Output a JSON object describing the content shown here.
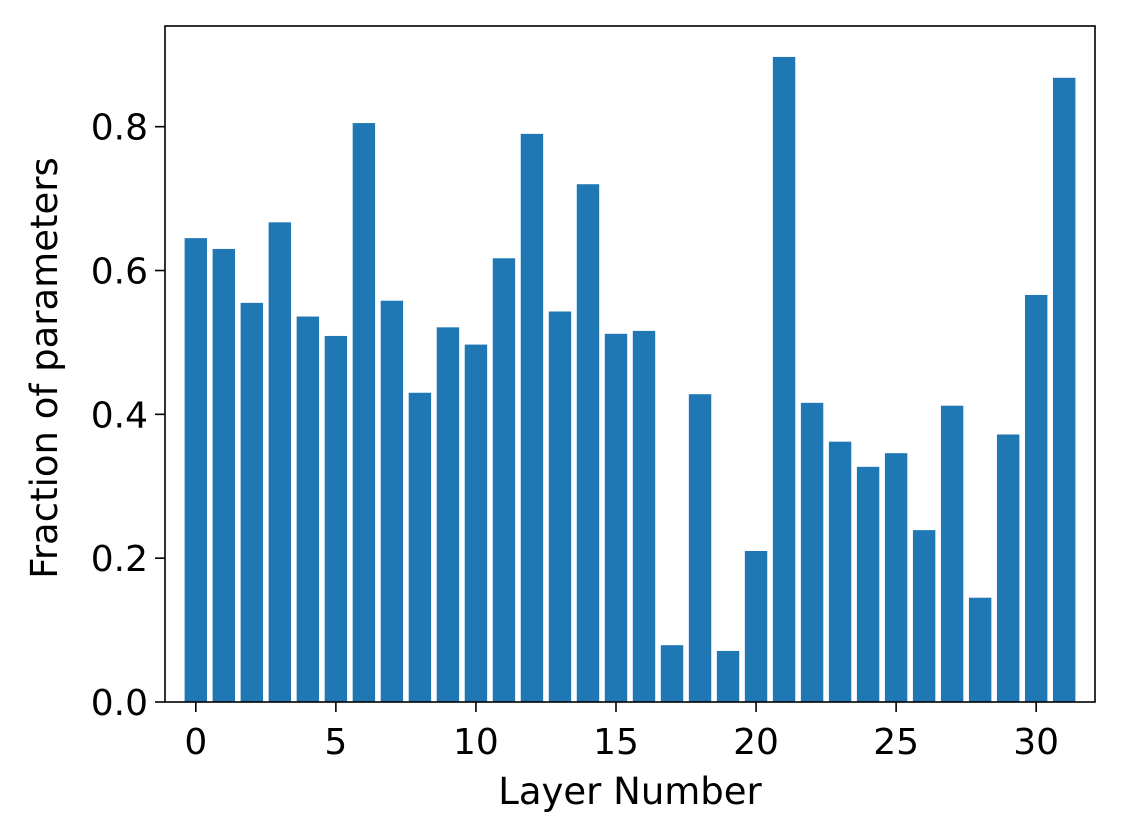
{
  "chart_data": {
    "type": "bar",
    "x": [
      0,
      1,
      2,
      3,
      4,
      5,
      6,
      7,
      8,
      9,
      10,
      11,
      12,
      13,
      14,
      15,
      16,
      17,
      18,
      19,
      20,
      21,
      22,
      23,
      24,
      25,
      26,
      27,
      28,
      29,
      30,
      31
    ],
    "values": [
      0.645,
      0.63,
      0.555,
      0.667,
      0.536,
      0.509,
      0.805,
      0.558,
      0.43,
      0.521,
      0.497,
      0.617,
      0.79,
      0.543,
      0.72,
      0.512,
      0.516,
      0.079,
      0.428,
      0.071,
      0.21,
      0.897,
      0.416,
      0.362,
      0.327,
      0.346,
      0.239,
      0.412,
      0.145,
      0.372,
      0.566,
      0.868
    ],
    "title": "",
    "xlabel": "Layer Number",
    "ylabel": "Fraction of parameters",
    "xlim": [
      -1.1,
      32.1
    ],
    "ylim": [
      0,
      0.94
    ],
    "xticks": [
      0,
      5,
      10,
      15,
      20,
      25,
      30
    ],
    "xtick_labels": [
      "0",
      "5",
      "10",
      "15",
      "20",
      "25",
      "30"
    ],
    "yticks": [
      0.0,
      0.2,
      0.4,
      0.6,
      0.8
    ],
    "ytick_labels": [
      "0.0",
      "0.2",
      "0.4",
      "0.6",
      "0.8"
    ],
    "bar_color": "#1f77b4",
    "grid": false,
    "legend": "none"
  }
}
